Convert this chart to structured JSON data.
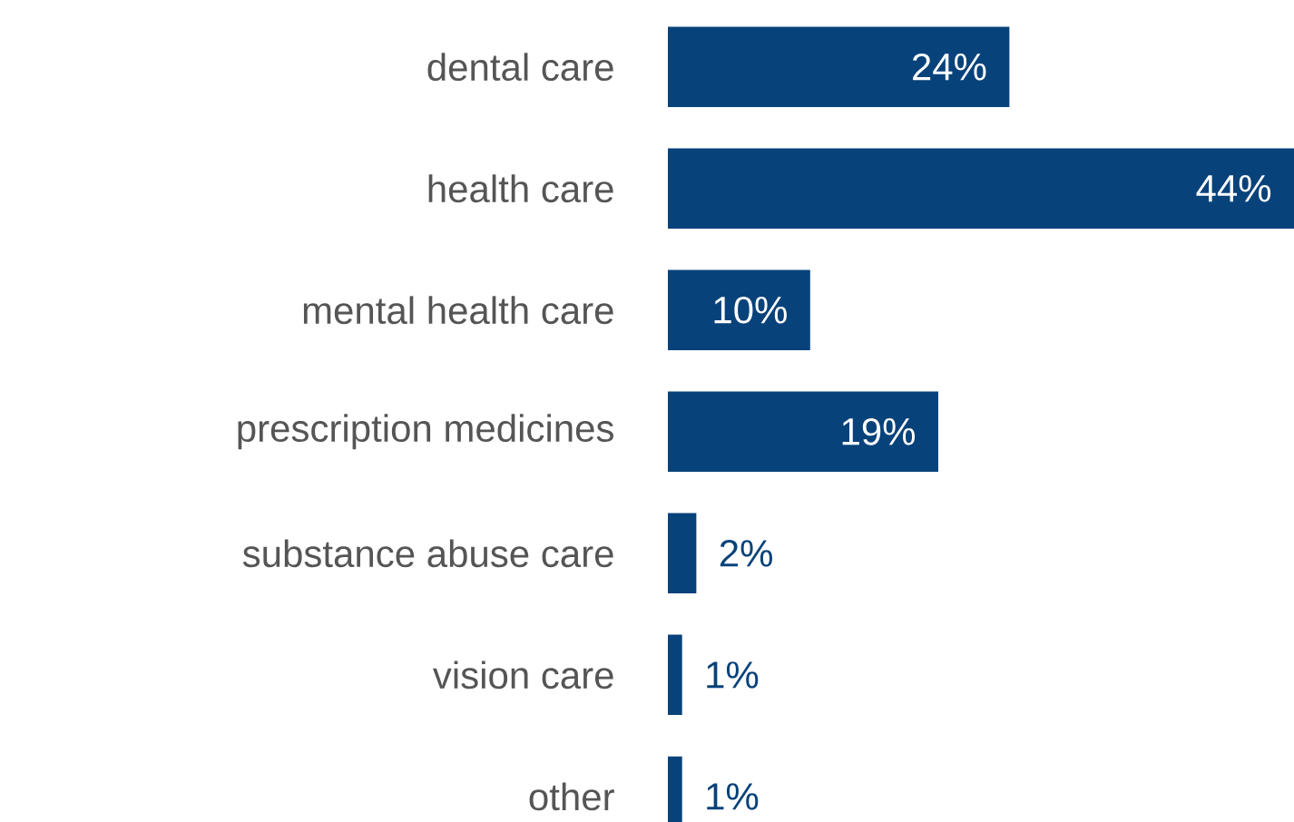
{
  "chart_data": {
    "type": "bar",
    "orientation": "horizontal",
    "categories": [
      "dental care",
      "health care",
      "mental health care",
      "prescription medicines",
      "substance abuse care",
      "vision care",
      "other"
    ],
    "values": [
      24,
      44,
      10,
      19,
      2,
      1,
      1
    ],
    "value_labels": [
      "24%",
      "44%",
      "10%",
      "19%",
      "2%",
      "1%",
      "1%"
    ],
    "color": "#08427a"
  }
}
